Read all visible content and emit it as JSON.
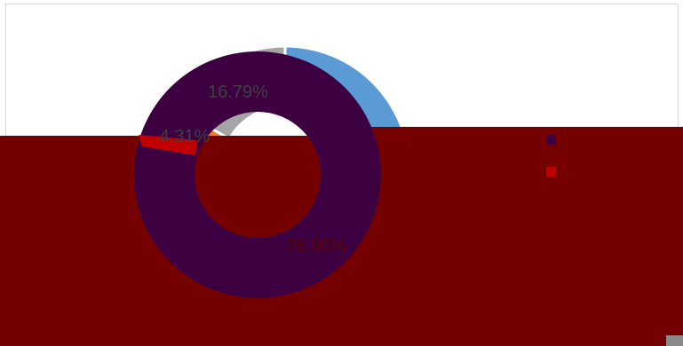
{
  "chart_data": {
    "type": "pie",
    "donut": true,
    "title": "",
    "slices": [
      {
        "label": "16.79%",
        "value": 16.79,
        "color": "#a5a5a5"
      },
      {
        "label": "4.31%",
        "value": 4.31,
        "color": "#ed7d31"
      },
      {
        "label": "78.90%",
        "value": 78.9,
        "color": "#5b9bd5"
      }
    ],
    "overlay": {
      "panel_color": "#750000",
      "lower_ring_color": "#3d0040",
      "legend_swatches": [
        "#3d0040",
        "#c00000"
      ]
    }
  }
}
